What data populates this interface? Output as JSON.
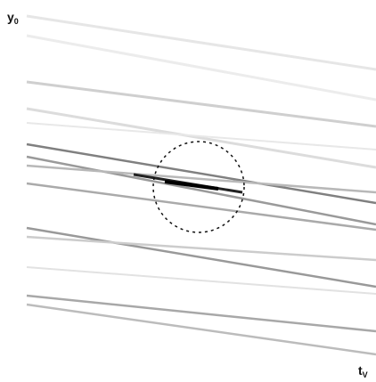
{
  "y_axis_label": {
    "main": "y",
    "sub": "0"
  },
  "x_axis_label": {
    "main": "t",
    "sub": "V"
  }
}
